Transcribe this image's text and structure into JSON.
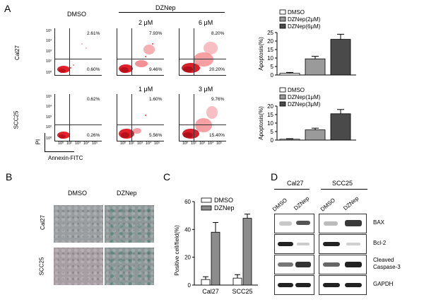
{
  "panel_letters": {
    "A": "A",
    "B": "B",
    "C": "C",
    "D": "D"
  },
  "panelA": {
    "dmso_header": "DMSO",
    "dznep_header": "DZNep",
    "row_labels": [
      "Cal27",
      "SCC25"
    ],
    "y_axis_label": "PI",
    "x_axis_label": "Annexin-FITC",
    "tick_labels": [
      "10⁰",
      "10¹",
      "10²",
      "10³",
      "10⁴",
      "10⁵"
    ],
    "row1": [
      {
        "dose": "",
        "ur": "2.61%",
        "lr": "0.60%"
      },
      {
        "dose": "2 μM",
        "ur": "7.93%",
        "lr": "9.46%"
      },
      {
        "dose": "6 μM",
        "ur": "8.20%",
        "lr": "20.20%"
      }
    ],
    "row2": [
      {
        "dose": "",
        "ur": "0.62%",
        "lr": "0.26%"
      },
      {
        "dose": "1 μM",
        "ur": "1.60%",
        "lr": "5.56%"
      },
      {
        "dose": "3 μM",
        "ur": "9.76%",
        "lr": "15.40%"
      }
    ]
  },
  "panelB": {
    "col_headers": [
      "DMSO",
      "DZNep"
    ],
    "row_labels": [
      "Cal27",
      "SCC25"
    ]
  },
  "panelD": {
    "group_labels": [
      "Cal27",
      "SCC25"
    ],
    "lane_labels": [
      "DMSO",
      "DZNep",
      "DMSO",
      "DZNep"
    ],
    "proteins": [
      "BAX",
      "Bcl-2",
      "Cleaved Caspase-3",
      "GAPDH"
    ]
  },
  "chart_data": [
    {
      "type": "bar",
      "title": "",
      "ylabel": "Apoptosis(%)",
      "xlabel": "",
      "ylim": [
        0,
        25
      ],
      "yticks": [
        0,
        5,
        10,
        15,
        20,
        25
      ],
      "categories": [
        "DMSO",
        "DZNep(2μM)",
        "DZNep(6μM)"
      ],
      "values": [
        1.0,
        9.5,
        21.0
      ],
      "errors": [
        0.5,
        1.5,
        3.0
      ],
      "colors": [
        "#ffffff",
        "#9a9a9a",
        "#4a4a4a"
      ],
      "legend": [
        "DMSO",
        "DZNep(2μM)",
        "DZNep(6μM)"
      ]
    },
    {
      "type": "bar",
      "title": "",
      "ylabel": "Apoptosis(%)",
      "xlabel": "",
      "ylim": [
        0,
        20
      ],
      "yticks": [
        0,
        5,
        10,
        15,
        20
      ],
      "categories": [
        "DMSO",
        "DZNep(1μM)",
        "DZNep(3μM)"
      ],
      "values": [
        0.5,
        6.0,
        15.5
      ],
      "errors": [
        0.3,
        1.0,
        2.5
      ],
      "colors": [
        "#ffffff",
        "#9a9a9a",
        "#4a4a4a"
      ],
      "legend": [
        "DMSO",
        "DZNep(1μM)",
        "DZNep(3μM)"
      ]
    },
    {
      "type": "bar",
      "title": "",
      "ylabel": "Positive cell/field(%)",
      "xlabel": "",
      "ylim": [
        0,
        60
      ],
      "yticks": [
        0,
        20,
        40,
        60
      ],
      "categories": [
        "Cal27",
        "SCC25"
      ],
      "series": [
        {
          "name": "DMSO",
          "values": [
            4,
            5
          ],
          "errors": [
            2,
            2.5
          ],
          "color": "#ffffff"
        },
        {
          "name": "DZNep",
          "values": [
            38,
            48
          ],
          "errors": [
            7,
            3
          ],
          "color": "#8c8c8c"
        }
      ],
      "legend": [
        "DMSO",
        "DZNep"
      ]
    }
  ]
}
